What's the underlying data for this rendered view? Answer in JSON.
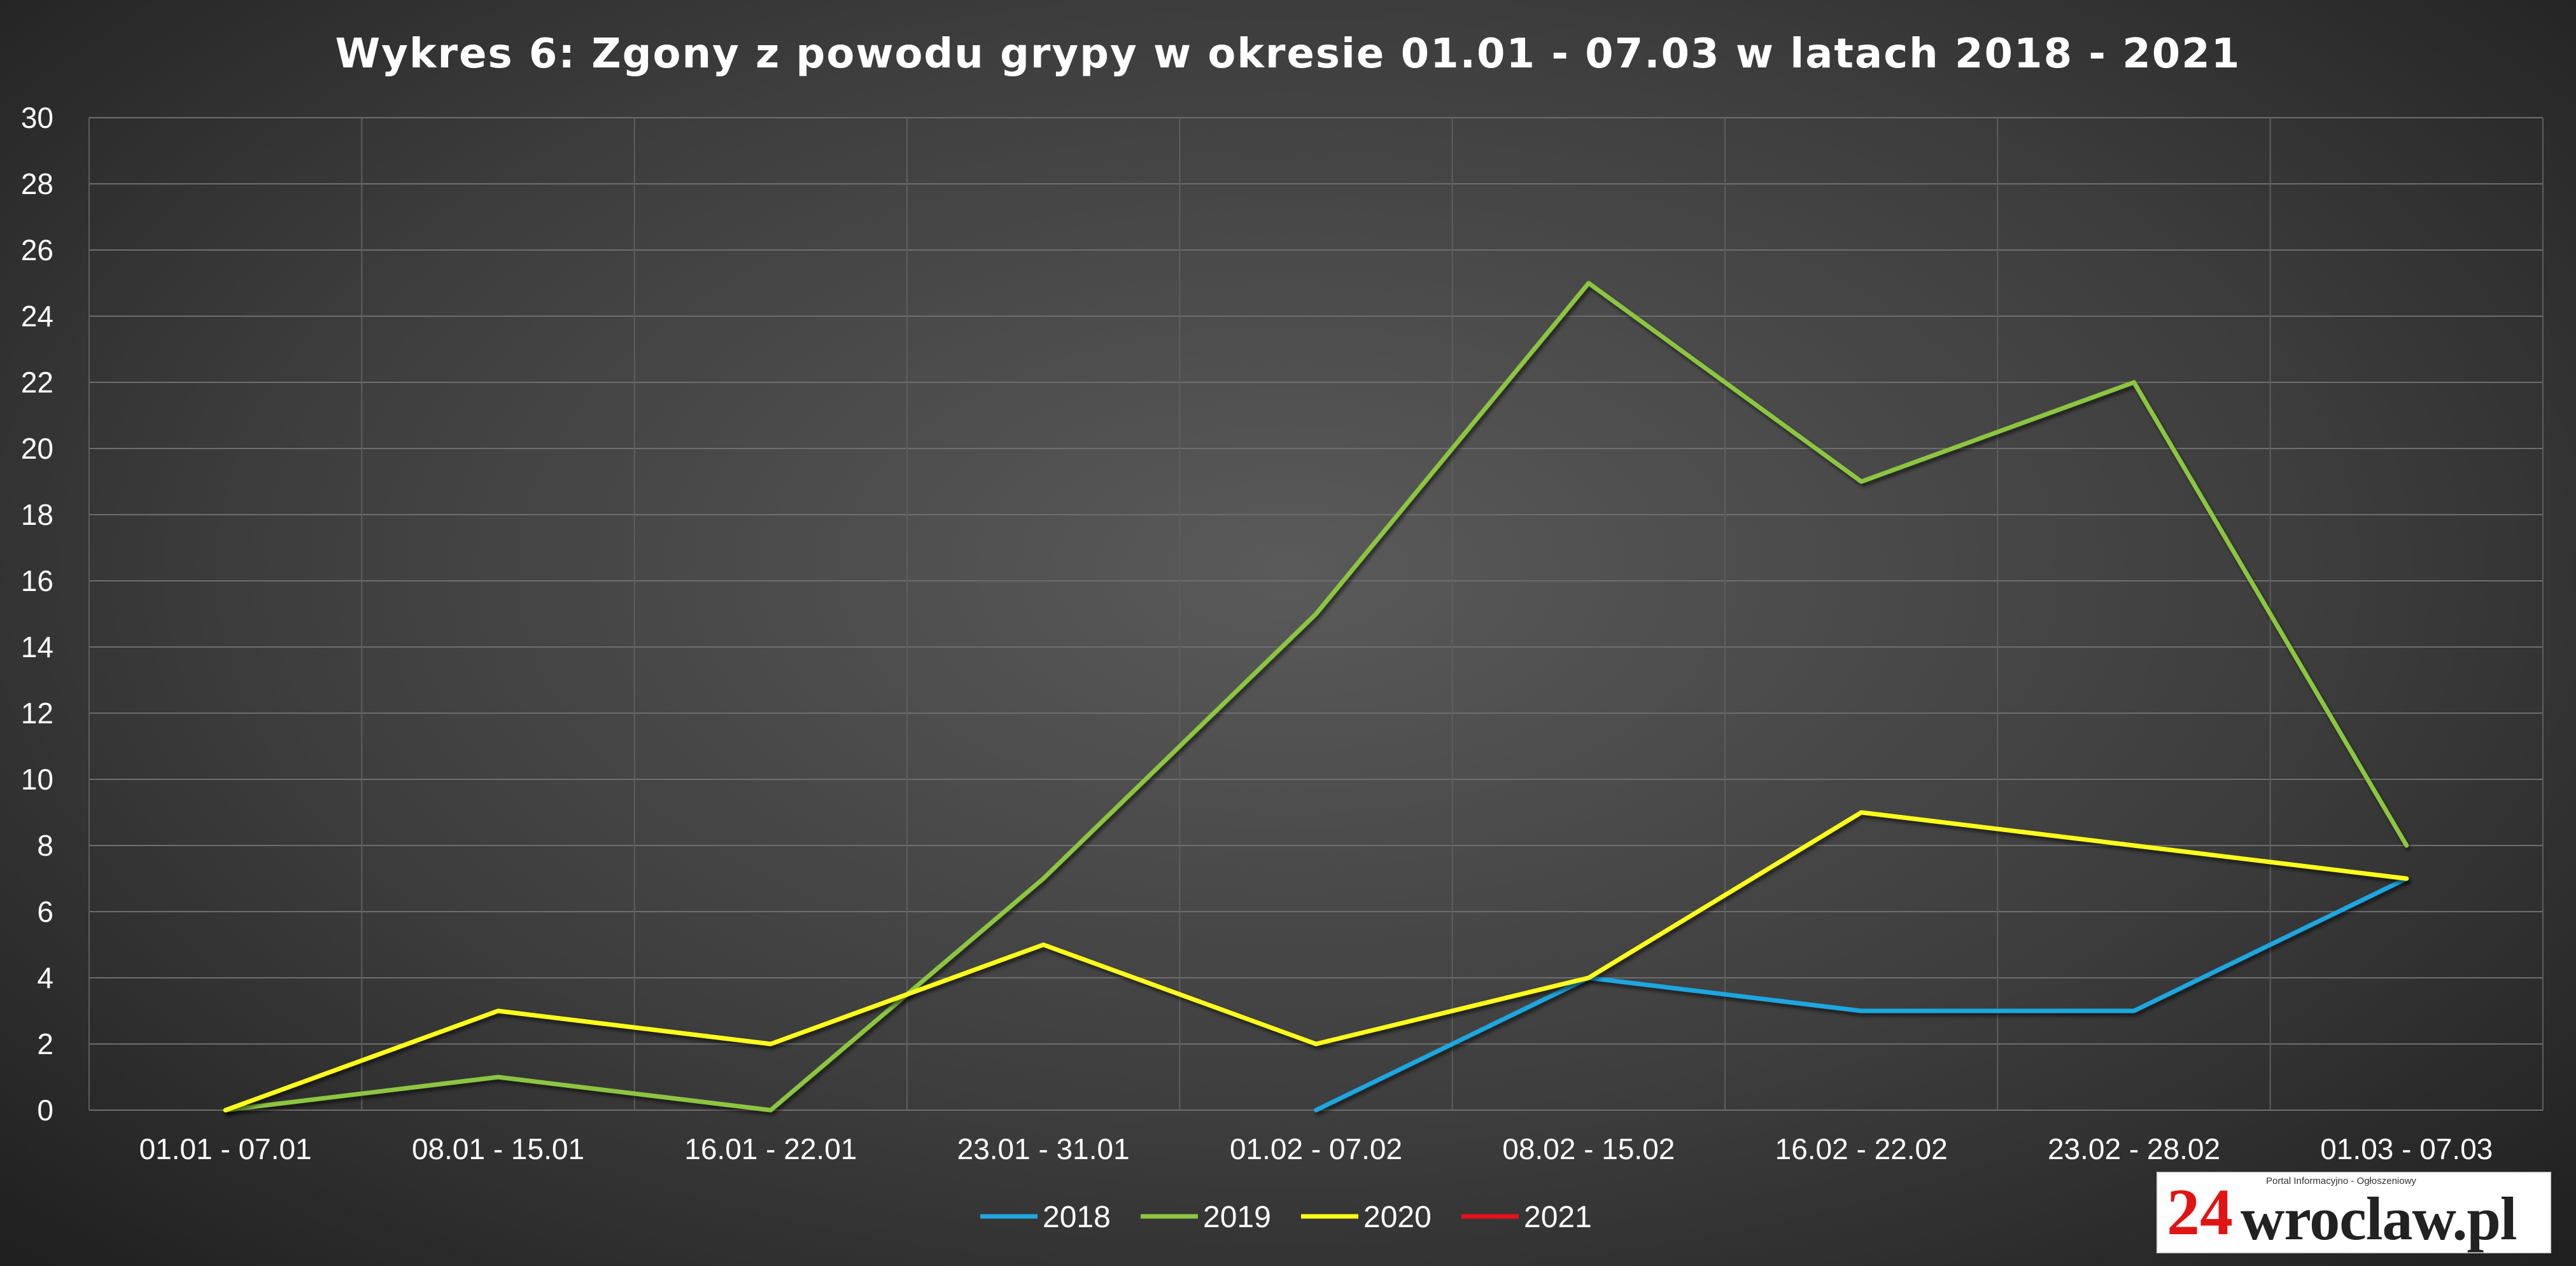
{
  "chart_data": {
    "type": "line",
    "title": "Wykres 6: Zgony z powodu grypy w okresie 01.01 - 07.03 w latach 2018 - 2021",
    "xlabel": "",
    "ylabel": "",
    "categories": [
      "01.01 - 07.01",
      "08.01 - 15.01",
      "16.01 - 22.01",
      "23.01 - 31.01",
      "01.02 - 07.02",
      "08.02 - 15.02",
      "16.02 - 22.02",
      "23.02 - 28.02",
      "01.03 - 07.03"
    ],
    "ylim": [
      0,
      30
    ],
    "yticks": [
      0,
      2,
      4,
      6,
      8,
      10,
      12,
      14,
      16,
      18,
      20,
      22,
      24,
      26,
      28,
      30
    ],
    "grid": true,
    "legend_position": "bottom",
    "series": [
      {
        "name": "2018",
        "color": "#1fa7e0",
        "values": [
          null,
          null,
          null,
          null,
          0,
          4,
          3,
          3,
          7
        ]
      },
      {
        "name": "2019",
        "color": "#8cc63f",
        "values": [
          0,
          1,
          0,
          7,
          15,
          25,
          19,
          22,
          8
        ]
      },
      {
        "name": "2020",
        "color": "#ffff1a",
        "values": [
          0,
          3,
          2,
          5,
          2,
          4,
          9,
          8,
          7
        ]
      },
      {
        "name": "2021",
        "color": "#e8101a",
        "values": [
          0,
          0,
          0,
          0,
          0,
          0,
          0,
          0,
          0
        ]
      }
    ]
  },
  "logo": {
    "number": "24",
    "name": "wroclaw.pl",
    "tagline": "Portal Informacyjno - Ogłoszeniowy"
  }
}
